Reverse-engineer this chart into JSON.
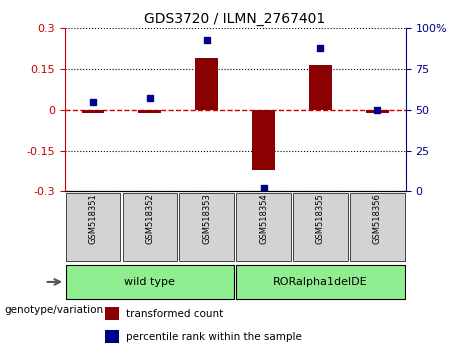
{
  "title": "GDS3720 / ILMN_2767401",
  "samples": [
    "GSM518351",
    "GSM518352",
    "GSM518353",
    "GSM518354",
    "GSM518355",
    "GSM518356"
  ],
  "transformed_count": [
    -0.012,
    -0.012,
    0.19,
    -0.22,
    0.165,
    -0.012
  ],
  "percentile_rank": [
    55,
    57,
    93,
    2,
    88,
    50
  ],
  "ylim_left": [
    -0.3,
    0.3
  ],
  "ylim_right": [
    0,
    100
  ],
  "yticks_left": [
    -0.3,
    -0.15,
    0,
    0.15,
    0.3
  ],
  "yticks_right": [
    0,
    25,
    50,
    75,
    100
  ],
  "ytick_labels_right": [
    "0",
    "25",
    "50",
    "75",
    "100%"
  ],
  "groups": [
    {
      "label": "wild type",
      "start": 0,
      "end": 2,
      "color": "#90ee90"
    },
    {
      "label": "RORalpha1delDE",
      "start": 3,
      "end": 5,
      "color": "#90ee90"
    }
  ],
  "group_label_prefix": "genotype/variation",
  "bar_color": "#8b0000",
  "dot_color": "#00008b",
  "zero_line_color": "#cc0000",
  "grid_color": "#000000",
  "bg_xtick": "#d3d3d3",
  "bar_width": 0.4,
  "legend_red_label": "transformed count",
  "legend_blue_label": "percentile rank within the sample"
}
